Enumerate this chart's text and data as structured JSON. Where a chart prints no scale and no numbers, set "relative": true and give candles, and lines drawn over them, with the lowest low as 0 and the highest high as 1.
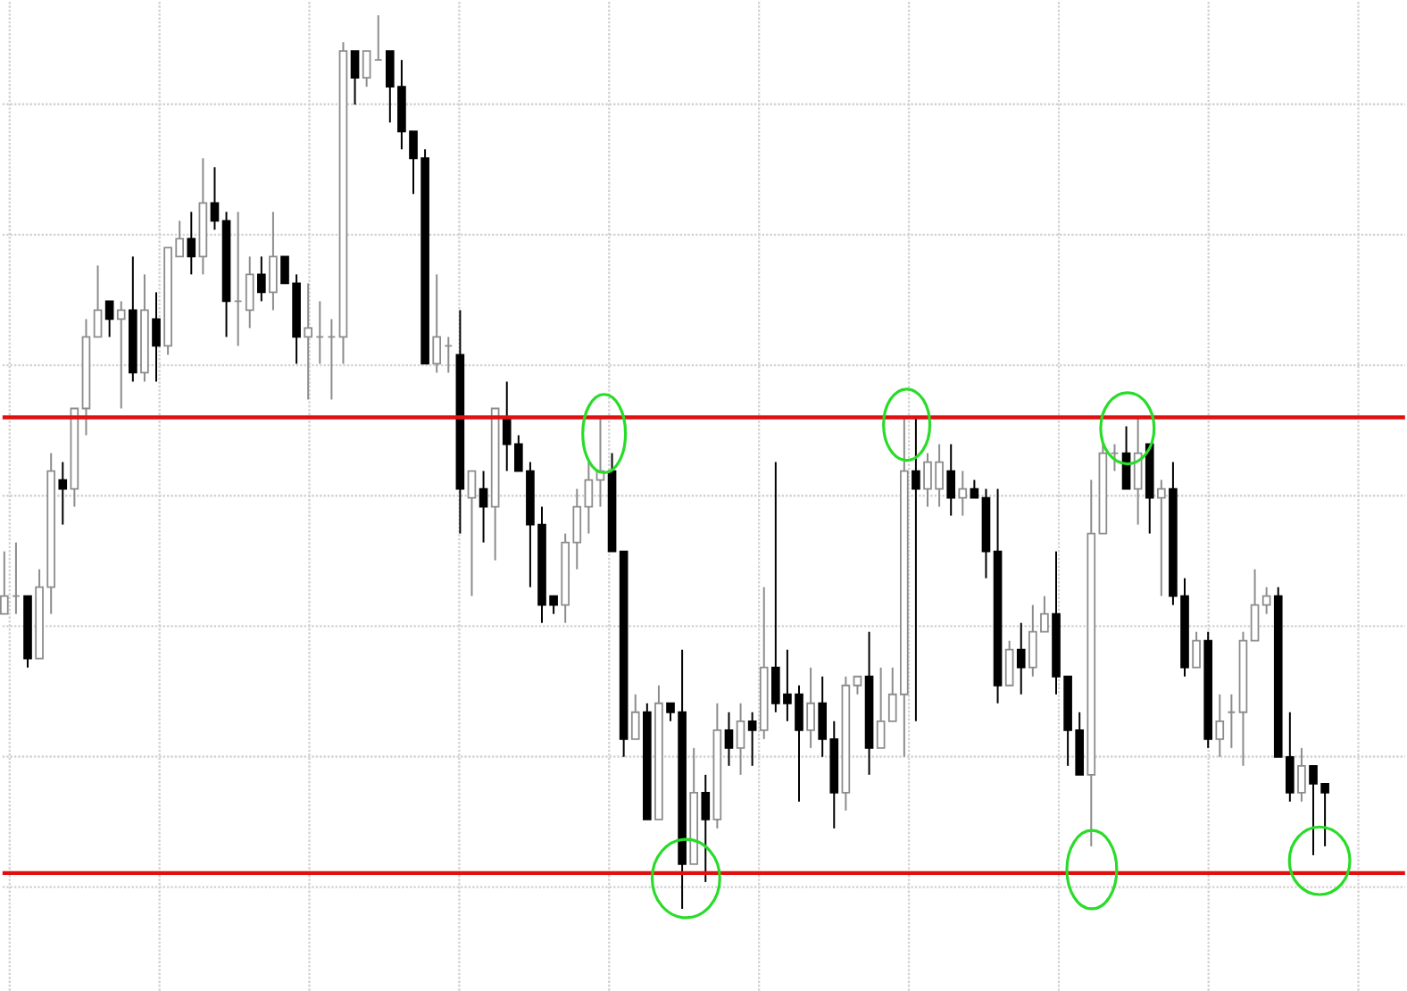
{
  "chart_data": {
    "type": "candlestick",
    "relative": true,
    "grid": true,
    "categories": [
      null,
      null,
      null,
      null,
      null,
      null,
      null,
      null,
      null,
      null,
      null,
      null,
      null,
      null,
      null,
      null,
      null,
      null,
      null,
      null,
      null,
      null,
      null,
      null,
      null,
      null,
      null,
      null,
      null,
      null,
      null,
      null,
      null,
      null,
      null,
      null,
      null,
      null,
      null,
      null,
      null,
      null,
      null,
      null,
      null,
      null,
      null,
      null,
      null,
      null,
      null,
      null,
      null,
      null,
      null,
      null,
      null,
      null,
      null,
      null,
      null,
      null,
      null,
      null,
      null,
      null,
      null,
      null,
      null,
      null,
      null,
      null,
      null,
      null,
      null,
      null,
      null,
      null,
      null,
      null,
      null,
      null,
      null,
      null,
      null,
      null,
      null,
      null,
      null,
      null,
      null,
      null,
      null,
      null,
      null,
      null,
      null,
      null,
      null,
      null,
      null,
      null,
      null,
      null,
      null,
      null,
      null,
      null,
      null,
      null,
      null,
      null,
      null,
      null
    ],
    "ohlc": [
      [
        0.33,
        0.4,
        0.33,
        0.35
      ],
      [
        0.35,
        0.41,
        0.33,
        0.35
      ],
      [
        0.35,
        0.35,
        0.27,
        0.28
      ],
      [
        0.28,
        0.38,
        0.28,
        0.36
      ],
      [
        0.36,
        0.51,
        0.33,
        0.49
      ],
      [
        0.48,
        0.5,
        0.43,
        0.47
      ],
      [
        0.47,
        0.56,
        0.45,
        0.56
      ],
      [
        0.56,
        0.66,
        0.53,
        0.64
      ],
      [
        0.64,
        0.72,
        0.64,
        0.67
      ],
      [
        0.68,
        0.68,
        0.64,
        0.66
      ],
      [
        0.66,
        0.68,
        0.56,
        0.67
      ],
      [
        0.67,
        0.73,
        0.59,
        0.6
      ],
      [
        0.6,
        0.71,
        0.59,
        0.67
      ],
      [
        0.66,
        0.69,
        0.59,
        0.63
      ],
      [
        0.63,
        0.74,
        0.62,
        0.74
      ],
      [
        0.73,
        0.77,
        0.73,
        0.75
      ],
      [
        0.75,
        0.78,
        0.71,
        0.73
      ],
      [
        0.73,
        0.84,
        0.71,
        0.79
      ],
      [
        0.79,
        0.83,
        0.76,
        0.77
      ],
      [
        0.77,
        0.78,
        0.64,
        0.68
      ],
      [
        0.68,
        0.78,
        0.63,
        0.68
      ],
      [
        0.67,
        0.73,
        0.65,
        0.71
      ],
      [
        0.71,
        0.73,
        0.68,
        0.69
      ],
      [
        0.69,
        0.78,
        0.67,
        0.73
      ],
      [
        0.73,
        0.73,
        0.7,
        0.7
      ],
      [
        0.7,
        0.71,
        0.61,
        0.64
      ],
      [
        0.64,
        0.7,
        0.57,
        0.65
      ],
      [
        0.64,
        0.68,
        0.61,
        0.64
      ],
      [
        0.64,
        0.66,
        0.57,
        0.64
      ],
      [
        0.64,
        0.97,
        0.61,
        0.96
      ],
      [
        0.96,
        0.96,
        0.9,
        0.93
      ],
      [
        0.93,
        0.96,
        0.92,
        0.96
      ],
      [
        0.95,
        1.0,
        0.95,
        0.95
      ],
      [
        0.96,
        0.96,
        0.88,
        0.92
      ],
      [
        0.92,
        0.95,
        0.85,
        0.87
      ],
      [
        0.87,
        0.87,
        0.8,
        0.84
      ],
      [
        0.84,
        0.85,
        0.61,
        0.61
      ],
      [
        0.61,
        0.71,
        0.6,
        0.64
      ],
      [
        0.63,
        0.64,
        0.6,
        0.63
      ],
      [
        0.62,
        0.67,
        0.42,
        0.47
      ],
      [
        0.46,
        0.49,
        0.35,
        0.49
      ],
      [
        0.47,
        0.49,
        0.41,
        0.45
      ],
      [
        0.45,
        0.56,
        0.39,
        0.56
      ],
      [
        0.55,
        0.59,
        0.49,
        0.52
      ],
      [
        0.52,
        0.53,
        0.49,
        0.49
      ],
      [
        0.49,
        0.5,
        0.36,
        0.43
      ],
      [
        0.43,
        0.45,
        0.32,
        0.34
      ],
      [
        0.35,
        0.35,
        0.33,
        0.34
      ],
      [
        0.34,
        0.42,
        0.32,
        0.41
      ],
      [
        0.41,
        0.47,
        0.38,
        0.45
      ],
      [
        0.45,
        0.5,
        0.42,
        0.48
      ],
      [
        0.48,
        0.55,
        0.45,
        0.49
      ],
      [
        0.49,
        0.51,
        0.4,
        0.4
      ],
      [
        0.4,
        0.4,
        0.17,
        0.19
      ],
      [
        0.19,
        0.24,
        0.19,
        0.22
      ],
      [
        0.22,
        0.23,
        0.1,
        0.1
      ],
      [
        0.1,
        0.25,
        0.1,
        0.23
      ],
      [
        0.23,
        0.23,
        0.21,
        0.22
      ],
      [
        0.22,
        0.29,
        0.0,
        0.05
      ],
      [
        0.05,
        0.18,
        0.05,
        0.13
      ],
      [
        0.13,
        0.15,
        0.03,
        0.1
      ],
      [
        0.1,
        0.23,
        0.09,
        0.2
      ],
      [
        0.2,
        0.22,
        0.16,
        0.18
      ],
      [
        0.18,
        0.23,
        0.15,
        0.21
      ],
      [
        0.21,
        0.22,
        0.16,
        0.2
      ],
      [
        0.2,
        0.36,
        0.19,
        0.27
      ],
      [
        0.27,
        0.5,
        0.22,
        0.23
      ],
      [
        0.24,
        0.29,
        0.21,
        0.23
      ],
      [
        0.24,
        0.25,
        0.12,
        0.2
      ],
      [
        0.2,
        0.27,
        0.18,
        0.23
      ],
      [
        0.23,
        0.26,
        0.17,
        0.19
      ],
      [
        0.19,
        0.21,
        0.09,
        0.13
      ],
      [
        0.13,
        0.26,
        0.11,
        0.25
      ],
      [
        0.25,
        0.26,
        0.24,
        0.26
      ],
      [
        0.26,
        0.31,
        0.15,
        0.18
      ],
      [
        0.18,
        0.27,
        0.18,
        0.21
      ],
      [
        0.21,
        0.27,
        0.21,
        0.24
      ],
      [
        0.24,
        0.55,
        0.17,
        0.49
      ],
      [
        0.49,
        0.55,
        0.21,
        0.47
      ],
      [
        0.47,
        0.51,
        0.45,
        0.5
      ],
      [
        0.47,
        0.52,
        0.45,
        0.5
      ],
      [
        0.49,
        0.52,
        0.44,
        0.46
      ],
      [
        0.46,
        0.49,
        0.44,
        0.47
      ],
      [
        0.47,
        0.48,
        0.46,
        0.46
      ],
      [
        0.46,
        0.47,
        0.37,
        0.4
      ],
      [
        0.4,
        0.47,
        0.23,
        0.25
      ],
      [
        0.25,
        0.3,
        0.25,
        0.29
      ],
      [
        0.29,
        0.32,
        0.24,
        0.27
      ],
      [
        0.27,
        0.34,
        0.26,
        0.31
      ],
      [
        0.31,
        0.35,
        0.31,
        0.33
      ],
      [
        0.33,
        0.4,
        0.24,
        0.26
      ],
      [
        0.26,
        0.26,
        0.16,
        0.2
      ],
      [
        0.2,
        0.22,
        0.15,
        0.15
      ],
      [
        0.15,
        0.48,
        0.07,
        0.42
      ],
      [
        0.42,
        0.52,
        0.42,
        0.51
      ],
      [
        0.51,
        0.52,
        0.49,
        0.51
      ],
      [
        0.51,
        0.54,
        0.47,
        0.47
      ],
      [
        0.47,
        0.55,
        0.43,
        0.51
      ],
      [
        0.52,
        0.52,
        0.42,
        0.46
      ],
      [
        0.46,
        0.48,
        0.35,
        0.47
      ],
      [
        0.47,
        0.5,
        0.34,
        0.35
      ],
      [
        0.35,
        0.37,
        0.26,
        0.27
      ],
      [
        0.27,
        0.31,
        0.27,
        0.3
      ],
      [
        0.3,
        0.31,
        0.18,
        0.19
      ],
      [
        0.19,
        0.24,
        0.17,
        0.21
      ],
      [
        0.22,
        0.24,
        0.18,
        0.22
      ],
      [
        0.22,
        0.31,
        0.16,
        0.3
      ],
      [
        0.3,
        0.38,
        0.3,
        0.34
      ],
      [
        0.34,
        0.36,
        0.33,
        0.35
      ],
      [
        0.35,
        0.36,
        0.17,
        0.17
      ],
      [
        0.17,
        0.22,
        0.12,
        0.13
      ],
      [
        0.13,
        0.18,
        0.12,
        0.16
      ],
      [
        0.16,
        0.16,
        0.06,
        0.14
      ],
      [
        0.14,
        0.14,
        0.07,
        0.13
      ]
    ],
    "ref_lines": [
      {
        "axis": "y",
        "value": 0.55,
        "color": "#e01010"
      },
      {
        "axis": "y",
        "value": 0.04,
        "color": "#e01010"
      }
    ]
  }
}
